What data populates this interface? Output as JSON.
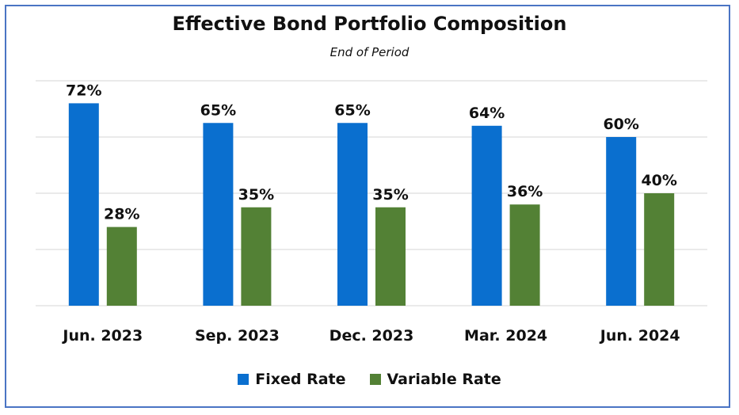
{
  "colors": {
    "fixed": "#0a6fcf",
    "variable": "#538135",
    "grid": "#d6d6d6",
    "frame": "#4a74c4"
  },
  "chart_data": {
    "type": "bar",
    "title": "Effective Bond Portfolio Composition",
    "subtitle": "End of Period",
    "categories": [
      "Jun. 2023",
      "Sep. 2023",
      "Dec. 2023",
      "Mar. 2024",
      "Jun. 2024"
    ],
    "series": [
      {
        "name": "Fixed Rate",
        "values": [
          72,
          65,
          65,
          64,
          60
        ],
        "labels": [
          "72%",
          "65%",
          "65%",
          "64%",
          "60%"
        ]
      },
      {
        "name": "Variable Rate",
        "values": [
          28,
          35,
          35,
          36,
          40
        ],
        "labels": [
          "28%",
          "35%",
          "35%",
          "36%",
          "40%"
        ]
      }
    ],
    "ylim": [
      0,
      80
    ],
    "grid": true,
    "legend_position": "bottom"
  }
}
